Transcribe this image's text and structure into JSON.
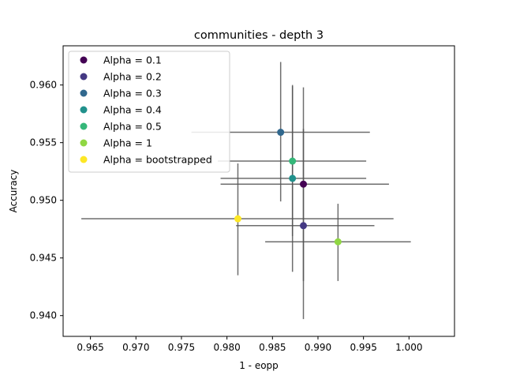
{
  "chart_data": {
    "type": "scatter",
    "title": "communities - depth 3",
    "xlabel": "1 - eopp",
    "ylabel": "Accuracy",
    "xlim": [
      0.962,
      1.005
    ],
    "ylim": [
      0.9382,
      0.9634
    ],
    "xticks": [
      0.965,
      0.97,
      0.975,
      0.98,
      0.985,
      0.99,
      0.995,
      1.0
    ],
    "xtick_labels": [
      "0.965",
      "0.970",
      "0.975",
      "0.980",
      "0.985",
      "0.990",
      "0.995",
      "1.000"
    ],
    "yticks": [
      0.94,
      0.945,
      0.95,
      0.955,
      0.96
    ],
    "ytick_labels": [
      "0.940",
      "0.945",
      "0.950",
      "0.955",
      "0.960"
    ],
    "grid": false,
    "legend_position": "top-left",
    "errorbar_color": "#555555",
    "series": [
      {
        "name": "Alpha = 0.1",
        "color": "#440154",
        "x": 0.9884,
        "y": 0.9514,
        "xerr": [
          0.9793,
          0.9978
        ],
        "yerr": [
          0.943,
          0.9562
        ]
      },
      {
        "name": "Alpha = 0.2",
        "color": "#443983",
        "x": 0.9884,
        "y": 0.9478,
        "xerr": [
          0.981,
          0.9962
        ],
        "yerr": [
          0.9397,
          0.9598
        ]
      },
      {
        "name": "Alpha = 0.3",
        "color": "#31688e",
        "x": 0.9859,
        "y": 0.9559,
        "xerr": [
          0.9761,
          0.9957
        ],
        "yerr": [
          0.9499,
          0.962
        ]
      },
      {
        "name": "Alpha = 0.4",
        "color": "#21918c",
        "x": 0.9872,
        "y": 0.9519,
        "xerr": [
          0.9793,
          0.9953
        ],
        "yerr": [
          0.9438,
          0.9599
        ]
      },
      {
        "name": "Alpha = 0.5",
        "color": "#35b779",
        "x": 0.9872,
        "y": 0.9534,
        "xerr": [
          0.979,
          0.9953
        ],
        "yerr": [
          0.9469,
          0.96
        ]
      },
      {
        "name": "Alpha = 1",
        "color": "#90d743",
        "x": 0.9922,
        "y": 0.9464,
        "xerr": [
          0.9842,
          1.0002
        ],
        "yerr": [
          0.943,
          0.9497
        ]
      },
      {
        "name": "Alpha = bootstrapped",
        "color": "#fde725",
        "x": 0.9812,
        "y": 0.9484,
        "xerr": [
          0.964,
          0.9983
        ],
        "yerr": [
          0.9435,
          0.9532
        ]
      }
    ]
  }
}
